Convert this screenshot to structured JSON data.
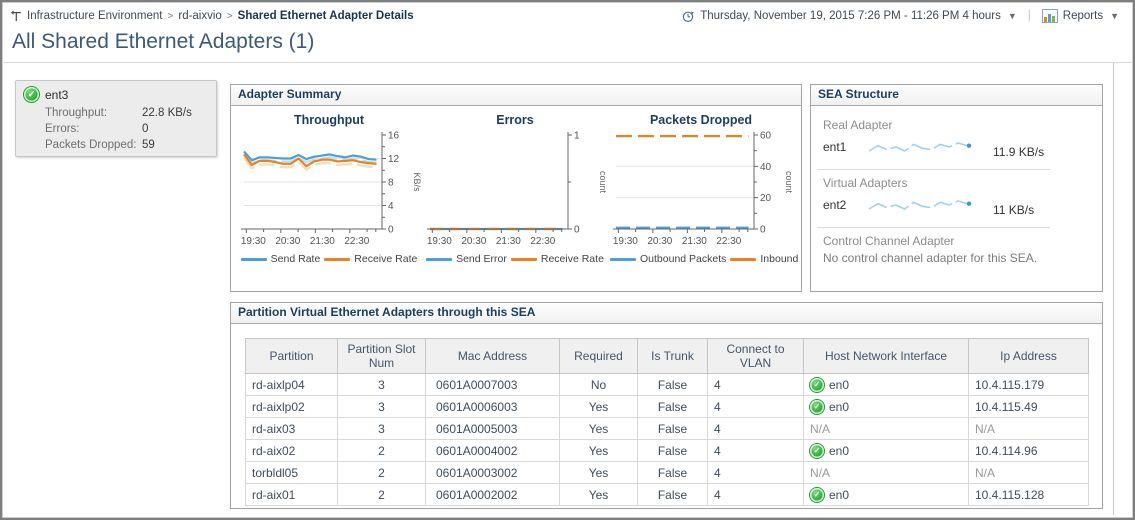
{
  "header": {
    "breadcrumb": {
      "items": [
        "Infrastructure Environment",
        "rd-aixvio",
        "Shared Ethernet Adapter Details"
      ],
      "separator": ">"
    },
    "time_range": "Thursday, November 19, 2015 7:26 PM - 11:26 PM 4 hours",
    "reports_label": "Reports",
    "page_title": "All Shared Ethernet Adapters (1)"
  },
  "adapter_tile": {
    "name": "ent3",
    "rows": [
      {
        "label": "Throughput:",
        "value": "22.8 KB/s"
      },
      {
        "label": "Errors:",
        "value": "0"
      },
      {
        "label": "Packets Dropped:",
        "value": "59"
      }
    ]
  },
  "adapter_summary": {
    "title": "Adapter Summary"
  },
  "chart_data": [
    {
      "type": "line",
      "title": "Throughput",
      "ylabel": "KB/s",
      "ylim": [
        0,
        16
      ],
      "yticks": [
        0,
        4,
        8,
        12,
        16
      ],
      "yminors": [
        2,
        6,
        10,
        14
      ],
      "xticks": [
        {
          "f": 0.017,
          "label": "19:30"
        },
        {
          "f": 0.267,
          "label": "20:30"
        },
        {
          "f": 0.517,
          "label": "21:30"
        },
        {
          "f": 0.767,
          "label": "22:30"
        }
      ],
      "xminors": [
        0.142,
        0.392,
        0.642,
        0.892,
        0.955
      ],
      "series": [
        {
          "name": "Send Rate",
          "color": "#4a9fdc",
          "echo": "#c2ddf1",
          "echo_offset": 0.5,
          "values": [
            13.2,
            11.7,
            12.2,
            12.2,
            12.1,
            12.0,
            12.0,
            12.6,
            11.9,
            12.3,
            12.5,
            12.7,
            12.4,
            12.2,
            12.5,
            12.3,
            11.9,
            11.8
          ]
        },
        {
          "name": "Receive Rate",
          "color": "#e8831f",
          "echo": "#f6dcbc",
          "echo_offset": 0.6,
          "values": [
            12.7,
            10.9,
            11.6,
            11.6,
            11.4,
            11.1,
            11.1,
            12.0,
            10.7,
            11.5,
            11.8,
            11.8,
            11.5,
            11.6,
            11.7,
            11.4,
            11.2,
            11.1
          ]
        }
      ]
    },
    {
      "type": "line",
      "title": "Errors",
      "ylabel": "count",
      "ylim": [
        0,
        1
      ],
      "yticks": [
        0,
        1
      ],
      "yminors": [
        0.5
      ],
      "xticks": [
        {
          "f": 0.017,
          "label": "19:30"
        },
        {
          "f": 0.267,
          "label": "20:30"
        },
        {
          "f": 0.517,
          "label": "21:30"
        },
        {
          "f": 0.767,
          "label": "22:30"
        }
      ],
      "xminors": [
        0.142,
        0.392,
        0.642,
        0.892,
        0.955
      ],
      "series": [
        {
          "name": "Send Error",
          "color": "#4a9fdc",
          "values": [
            0,
            0,
            0,
            0,
            0,
            0,
            0,
            0,
            0,
            0
          ]
        },
        {
          "name": "Receive Rate",
          "color": "#e8831f",
          "dash": "12 7",
          "values": [
            0,
            0,
            0,
            0,
            0,
            0,
            0,
            0,
            0,
            0
          ]
        }
      ]
    },
    {
      "type": "line",
      "title": "Packets Dropped",
      "ylabel": "count",
      "ylim": [
        0,
        60
      ],
      "yticks": [
        0,
        20,
        40,
        60
      ],
      "yminors": [
        10,
        30,
        50
      ],
      "xticks": [
        {
          "f": 0.017,
          "label": "19:30"
        },
        {
          "f": 0.267,
          "label": "20:30"
        },
        {
          "f": 0.517,
          "label": "21:30"
        },
        {
          "f": 0.767,
          "label": "22:30"
        }
      ],
      "xminors": [
        0.142,
        0.392,
        0.642,
        0.892,
        0.955
      ],
      "series": [
        {
          "name": "Outbound Packets",
          "color": "#4a9fdc",
          "dash": "14 6",
          "values": [
            0.8,
            0.8,
            0.8,
            0.8,
            0.8,
            0.8,
            0.8,
            0.8,
            0.8,
            0.8
          ]
        },
        {
          "name": "Inbound Pack",
          "color": "#e8831f",
          "dash": "16 6",
          "values": [
            59.3,
            59.3,
            59.3,
            59.3,
            59.3,
            59.3,
            59.3,
            59.3,
            59.3,
            59.3
          ]
        }
      ]
    }
  ],
  "sea_structure": {
    "title": "SEA Structure",
    "sections": [
      {
        "label": "Real Adapter",
        "adapter": "ent1",
        "value": "11.9 KB/s",
        "spark": [
          11.5,
          11.9,
          11.6,
          11.8,
          11.5,
          12.0,
          11.7,
          11.6,
          12.0,
          11.8,
          12.1,
          11.9
        ]
      },
      {
        "label": "Virtual Adapters",
        "adapter": "ent2",
        "value": "11 KB/s",
        "spark": [
          11.0,
          11.4,
          11.1,
          11.3,
          11.0,
          11.5,
          11.2,
          11.1,
          11.5,
          11.3,
          11.6,
          11.4
        ]
      },
      {
        "label": "Control Channel Adapter",
        "message": "No control channel adapter for this SEA."
      }
    ]
  },
  "partitions": {
    "title": "Partition Virtual Ethernet Adapters through this SEA",
    "columns": [
      "Partition",
      "Partition Slot Num",
      "Mac Address",
      "Required",
      "Is Trunk",
      "Connect to VLAN",
      "Host Network Interface",
      "Ip Address"
    ],
    "rows": [
      {
        "partition": "rd-aixlp04",
        "slot": "3",
        "mac": "0601A0007003",
        "required": "No",
        "is_trunk": "False",
        "vlan": "4",
        "host_iface": "en0",
        "host_iface_ok": true,
        "ip": "10.4.115.179"
      },
      {
        "partition": "rd-aixlp02",
        "slot": "3",
        "mac": "0601A0006003",
        "required": "Yes",
        "is_trunk": "False",
        "vlan": "4",
        "host_iface": "en0",
        "host_iface_ok": true,
        "ip": "10.4.115.49"
      },
      {
        "partition": "rd-aix03",
        "slot": "3",
        "mac": "0601A0005003",
        "required": "Yes",
        "is_trunk": "False",
        "vlan": "4",
        "host_iface": "N/A",
        "host_iface_ok": false,
        "ip": "N/A"
      },
      {
        "partition": "rd-aix02",
        "slot": "2",
        "mac": "0601A0004002",
        "required": "Yes",
        "is_trunk": "False",
        "vlan": "4",
        "host_iface": "en0",
        "host_iface_ok": true,
        "ip": "10.4.114.96"
      },
      {
        "partition": "torbldl05",
        "slot": "2",
        "mac": "0601A0003002",
        "required": "Yes",
        "is_trunk": "False",
        "vlan": "4",
        "host_iface": "N/A",
        "host_iface_ok": false,
        "ip": "N/A"
      },
      {
        "partition": "rd-aix01",
        "slot": "2",
        "mac": "0601A0002002",
        "required": "Yes",
        "is_trunk": "False",
        "vlan": "4",
        "host_iface": "en0",
        "host_iface_ok": true,
        "ip": "10.4.115.128"
      }
    ]
  },
  "colors": {
    "chart_blue": "#4a9fdc",
    "chart_orange": "#e8831f",
    "status_green": "#2fae3b",
    "heading_navy": "#1c3e5e",
    "spark_blue": "#9ed2ef"
  }
}
